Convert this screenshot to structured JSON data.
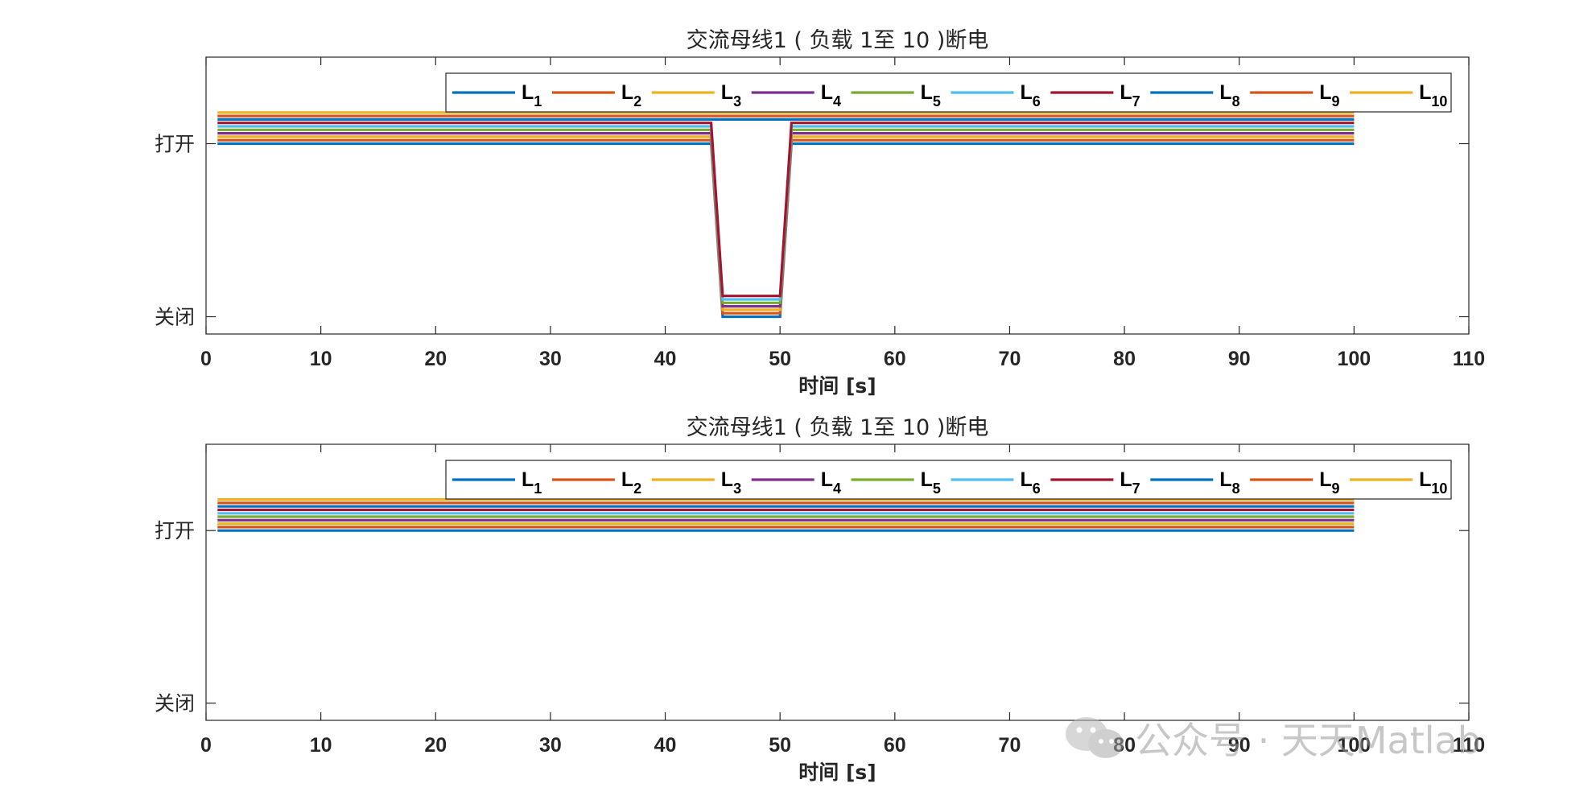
{
  "chart_data": [
    {
      "type": "line",
      "title": "交流母线1 ( 负载 1至 10 )断电",
      "xlabel": "时间 [s]",
      "ylabel": "",
      "xlim": [
        0,
        110
      ],
      "xticks": [
        0,
        10,
        20,
        30,
        40,
        50,
        60,
        70,
        80,
        90,
        100,
        110
      ],
      "yticks": [
        {
          "value": 1,
          "label": "打开"
        },
        {
          "value": 0,
          "label": "关闭"
        }
      ],
      "ylim": [
        -0.1,
        1.5
      ],
      "grid": false,
      "legend_location": "top-right",
      "legend_orientation": "horizontal",
      "series_offset_step": 0.02,
      "series": [
        {
          "label": "L",
          "sub": "1",
          "color": "#0072BD",
          "x": [
            1,
            44,
            45,
            50,
            51,
            100
          ],
          "y": [
            1,
            1,
            0,
            0,
            1,
            1
          ]
        },
        {
          "label": "L",
          "sub": "2",
          "color": "#D95319",
          "x": [
            1,
            44,
            45,
            50,
            51,
            100
          ],
          "y": [
            1,
            1,
            0,
            0,
            1,
            1
          ]
        },
        {
          "label": "L",
          "sub": "3",
          "color": "#EDB120",
          "x": [
            1,
            44,
            45,
            50,
            51,
            100
          ],
          "y": [
            1,
            1,
            0,
            0,
            1,
            1
          ]
        },
        {
          "label": "L",
          "sub": "4",
          "color": "#7E2F8E",
          "x": [
            1,
            44,
            45,
            50,
            51,
            100
          ],
          "y": [
            1,
            1,
            0,
            0,
            1,
            1
          ]
        },
        {
          "label": "L",
          "sub": "5",
          "color": "#77AC30",
          "x": [
            1,
            44,
            45,
            50,
            51,
            100
          ],
          "y": [
            1,
            1,
            0,
            0,
            1,
            1
          ]
        },
        {
          "label": "L",
          "sub": "6",
          "color": "#4DBEEE",
          "x": [
            1,
            44,
            45,
            50,
            51,
            100
          ],
          "y": [
            1,
            1,
            0,
            0,
            1,
            1
          ]
        },
        {
          "label": "L",
          "sub": "7",
          "color": "#A2142F",
          "x": [
            1,
            44,
            45,
            50,
            51,
            100
          ],
          "y": [
            1,
            1,
            0,
            0,
            1,
            1
          ]
        },
        {
          "label": "L",
          "sub": "8",
          "color": "#0072BD",
          "x": [
            1,
            100
          ],
          "y": [
            1,
            1
          ]
        },
        {
          "label": "L",
          "sub": "9",
          "color": "#D95319",
          "x": [
            1,
            100
          ],
          "y": [
            1,
            1
          ]
        },
        {
          "label": "L",
          "sub": "10",
          "color": "#EDB120",
          "x": [
            1,
            100
          ],
          "y": [
            1,
            1
          ]
        }
      ]
    },
    {
      "type": "line",
      "title": "交流母线1 ( 负载 1至 10 )断电",
      "xlabel": "时间 [s]",
      "ylabel": "",
      "xlim": [
        0,
        110
      ],
      "xticks": [
        0,
        10,
        20,
        30,
        40,
        50,
        60,
        70,
        80,
        90,
        100,
        110
      ],
      "yticks": [
        {
          "value": 1,
          "label": "打开"
        },
        {
          "value": 0,
          "label": "关闭"
        }
      ],
      "ylim": [
        -0.1,
        1.5
      ],
      "grid": false,
      "legend_location": "top-right",
      "legend_orientation": "horizontal",
      "series_offset_step": 0.02,
      "series": [
        {
          "label": "L",
          "sub": "1",
          "color": "#0072BD",
          "x": [
            1,
            100
          ],
          "y": [
            1,
            1
          ]
        },
        {
          "label": "L",
          "sub": "2",
          "color": "#D95319",
          "x": [
            1,
            100
          ],
          "y": [
            1,
            1
          ]
        },
        {
          "label": "L",
          "sub": "3",
          "color": "#EDB120",
          "x": [
            1,
            100
          ],
          "y": [
            1,
            1
          ]
        },
        {
          "label": "L",
          "sub": "4",
          "color": "#7E2F8E",
          "x": [
            1,
            100
          ],
          "y": [
            1,
            1
          ]
        },
        {
          "label": "L",
          "sub": "5",
          "color": "#77AC30",
          "x": [
            1,
            100
          ],
          "y": [
            1,
            1
          ]
        },
        {
          "label": "L",
          "sub": "6",
          "color": "#4DBEEE",
          "x": [
            1,
            100
          ],
          "y": [
            1,
            1
          ]
        },
        {
          "label": "L",
          "sub": "7",
          "color": "#A2142F",
          "x": [
            1,
            100
          ],
          "y": [
            1,
            1
          ]
        },
        {
          "label": "L",
          "sub": "8",
          "color": "#0072BD",
          "x": [
            1,
            100
          ],
          "y": [
            1,
            1
          ]
        },
        {
          "label": "L",
          "sub": "9",
          "color": "#D95319",
          "x": [
            1,
            100
          ],
          "y": [
            1,
            1
          ]
        },
        {
          "label": "L",
          "sub": "10",
          "color": "#EDB120",
          "x": [
            1,
            100
          ],
          "y": [
            1,
            1
          ]
        }
      ]
    }
  ],
  "watermark": {
    "text": "公众号 · 天天Matlab",
    "icon": "wechat-icon"
  }
}
